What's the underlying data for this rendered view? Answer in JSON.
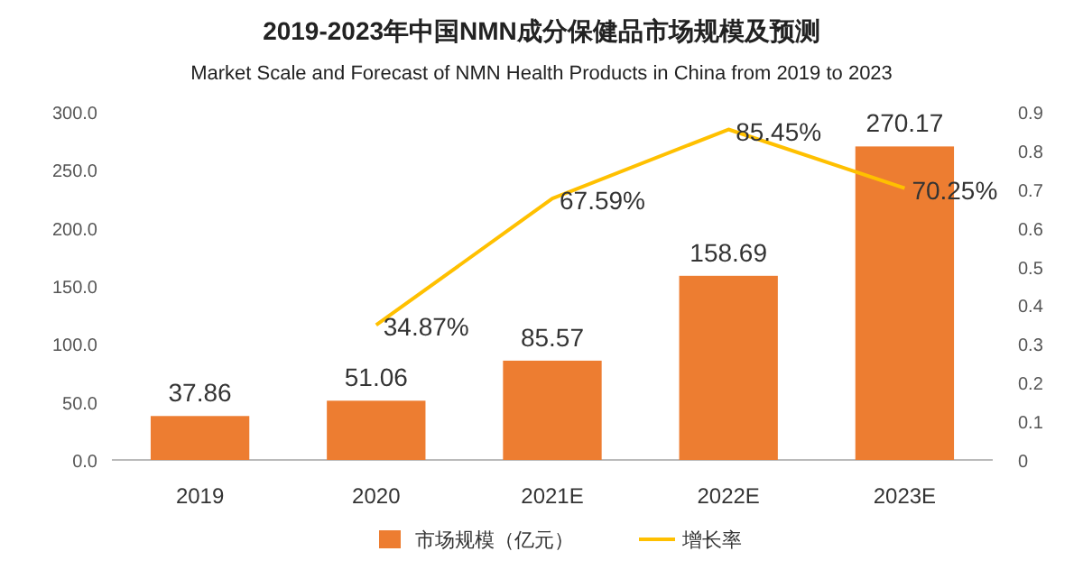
{
  "chart_data": {
    "type": "bar",
    "title": "2019-2023年中国NMN成分保健品市场规模及预测",
    "subtitle": "Market Scale and Forecast of NMN Health Products in China from 2019 to 2023",
    "categories": [
      "2019",
      "2020",
      "2021E",
      "2022E",
      "2023E"
    ],
    "series": [
      {
        "name": "市场规模（亿元）",
        "color": "#ed7d31",
        "values": [
          37.86,
          51.06,
          85.57,
          158.69,
          270.17
        ],
        "value_labels": [
          "37.86",
          "51.06",
          "85.57",
          "158.69",
          "270.17"
        ]
      },
      {
        "name": "增长率",
        "type": "line",
        "axis": "y2",
        "color": "#ffc000",
        "values": [
          null,
          0.3487,
          0.6759,
          0.8545,
          0.7025
        ],
        "value_labels": [
          null,
          "34.87%",
          "67.59%",
          "85.45%",
          "70.25%"
        ]
      }
    ],
    "ylim": [
      0,
      300
    ],
    "yticks": [
      {
        "value": 0,
        "label": "0.0"
      },
      {
        "value": 50,
        "label": "50.0"
      },
      {
        "value": 100,
        "label": "100.0"
      },
      {
        "value": 150,
        "label": "150.0"
      },
      {
        "value": 200,
        "label": "200.0"
      },
      {
        "value": 250,
        "label": "250.0"
      },
      {
        "value": 300,
        "label": "300.0"
      }
    ],
    "y2lim": [
      0,
      0.9
    ],
    "y2ticks": [
      0,
      0.1,
      0.2,
      0.3,
      0.4,
      0.5,
      0.6,
      0.7,
      0.8,
      0.9
    ],
    "legend": "bottom",
    "grid": false,
    "marker": "none"
  }
}
